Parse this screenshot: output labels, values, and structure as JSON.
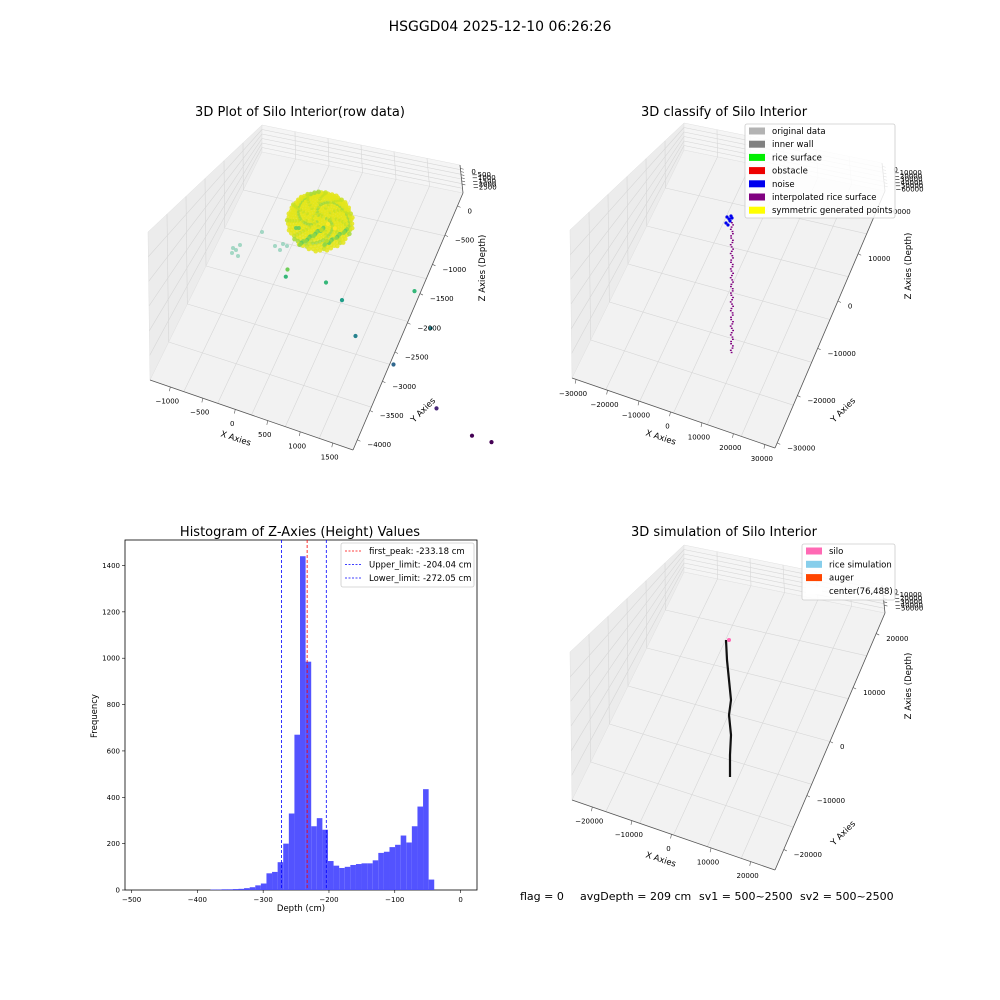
{
  "suptitle": "HSGGD04 2025-12-10 06:26:26",
  "footer": {
    "flag": "flag = 0",
    "avg": "avgDepth = 209 cm",
    "sv1": "sv1 = 500~2500",
    "sv2": "sv2 = 500~2500"
  },
  "chart_data": [
    {
      "type": "scatter",
      "title": "3D Plot of Silo Interior(row data)",
      "xlabel": "X Axies",
      "ylabel": "Y Axies",
      "zlabel": "Z Axies (Depth)",
      "x_ticks": [
        "−1000",
        "−500",
        "0",
        "500",
        "1000",
        "1500"
      ],
      "y_ticks": [
        "0",
        "−500",
        "−1000",
        "−1500",
        "−2000",
        "−2500",
        "−3000",
        "−3500",
        "−4000"
      ],
      "z_ticks": [
        "0",
        "−500",
        "−1000",
        "−1500",
        "−2000",
        "−2500"
      ],
      "colormap": "viridis",
      "points": [
        {
          "x": 300,
          "y": -900,
          "z": -80
        },
        {
          "x": 350,
          "y": -1000,
          "z": -120
        },
        {
          "x": 250,
          "y": -800,
          "z": -200
        },
        {
          "x": 200,
          "y": -1200,
          "z": -300
        },
        {
          "x": -500,
          "y": -2000,
          "z": -700
        },
        {
          "x": -550,
          "y": -2100,
          "z": -800
        },
        {
          "x": 100,
          "y": -1500,
          "z": -900
        },
        {
          "x": 1200,
          "y": -1300,
          "z": -900
        },
        {
          "x": 200,
          "y": -1800,
          "z": -1100
        },
        {
          "x": 1300,
          "y": -1600,
          "z": -1400
        },
        {
          "x": 300,
          "y": -2000,
          "z": -1600
        },
        {
          "x": 600,
          "y": -2500,
          "z": -1900
        },
        {
          "x": 900,
          "y": -3200,
          "z": -2400
        },
        {
          "x": 1200,
          "y": -3600,
          "z": -2700
        },
        {
          "x": 1400,
          "y": -3700,
          "z": -2750
        }
      ]
    },
    {
      "type": "scatter",
      "title": "3D classify of Silo Interior",
      "xlabel": "X Axies",
      "ylabel": "Y Axies",
      "zlabel": "Z Axies (Depth)",
      "x_ticks": [
        "−30000",
        "−20000",
        "−10000",
        "0",
        "10000",
        "20000",
        "30000"
      ],
      "y_ticks": [
        "20000",
        "10000",
        "0",
        "−10000",
        "−20000",
        "−30000"
      ],
      "z_ticks": [
        "0",
        "−10000",
        "−20000",
        "−30000",
        "−40000",
        "−50000",
        "−60000"
      ],
      "legend": [
        {
          "label": "original data",
          "color": "#b3b3b3"
        },
        {
          "label": "inner wall",
          "color": "#808080"
        },
        {
          "label": "rice surface",
          "color": "#00ee00"
        },
        {
          "label": "obstacle",
          "color": "#ee0000"
        },
        {
          "label": "noise",
          "color": "#0000ee"
        },
        {
          "label": "interpolated rice surface",
          "color": "#800080"
        },
        {
          "label": "symmetric generated points",
          "color": "#ffff00"
        }
      ]
    },
    {
      "type": "bar",
      "title": "Histogram of Z-Axies (Height) Values",
      "xlabel": "Depth (cm)",
      "ylabel": "Frequency",
      "xlim": [
        -510,
        25
      ],
      "ylim": [
        0,
        1510
      ],
      "x_ticks": [
        -500,
        -400,
        -300,
        -200,
        -100,
        0
      ],
      "y_ticks": [
        0,
        200,
        400,
        600,
        800,
        1000,
        1200,
        1400
      ],
      "bar_color": "#4a4aff",
      "bin_width": 8.5,
      "bins": [
        [
          -380,
          2
        ],
        [
          -371.5,
          2
        ],
        [
          -363,
          3
        ],
        [
          -354.5,
          3
        ],
        [
          -346,
          4
        ],
        [
          -337.5,
          5
        ],
        [
          -329,
          8
        ],
        [
          -320.5,
          12
        ],
        [
          -312,
          20
        ],
        [
          -303.5,
          28
        ],
        [
          -295,
          72
        ],
        [
          -286.5,
          78
        ],
        [
          -278,
          120
        ],
        [
          -269.5,
          200
        ],
        [
          -261,
          330
        ],
        [
          -252.5,
          670
        ],
        [
          -244,
          1440
        ],
        [
          -235.5,
          985
        ],
        [
          -227,
          275
        ],
        [
          -218.5,
          310
        ],
        [
          -210,
          260
        ],
        [
          -201.5,
          125
        ],
        [
          -193,
          105
        ],
        [
          -184.5,
          95
        ],
        [
          -176,
          100
        ],
        [
          -167.5,
          108
        ],
        [
          -159,
          112
        ],
        [
          -150.5,
          115
        ],
        [
          -142,
          115
        ],
        [
          -133.5,
          128
        ],
        [
          -125,
          160
        ],
        [
          -116.5,
          165
        ],
        [
          -108,
          185
        ],
        [
          -99.5,
          195
        ],
        [
          -91,
          235
        ],
        [
          -82.5,
          205
        ],
        [
          -74,
          275
        ],
        [
          -65.5,
          360
        ],
        [
          -57,
          435
        ],
        [
          -48.5,
          45
        ]
      ],
      "vlines": [
        {
          "x": -233.18,
          "color": "#ff0000",
          "label": "first_peak: -233.18 cm"
        },
        {
          "x": -204.04,
          "color": "#0000ff",
          "label": "Upper_limit: -204.04 cm"
        },
        {
          "x": -272.05,
          "color": "#0000ff",
          "label": "Lower_limit: -272.05 cm"
        }
      ]
    },
    {
      "type": "scatter",
      "title": "3D simulation of Silo Interior",
      "xlabel": "X Axies",
      "ylabel": "Y Axies",
      "zlabel": "Z Axies (Depth)",
      "x_ticks": [
        "−20000",
        "−10000",
        "0",
        "10000",
        "20000"
      ],
      "y_ticks": [
        "20000",
        "10000",
        "0",
        "−10000",
        "−20000"
      ],
      "z_ticks": [
        "0",
        "−10000",
        "−20000",
        "−30000",
        "−40000",
        "−50000"
      ],
      "legend": [
        {
          "label": "silo",
          "color": "#ff69b4"
        },
        {
          "label": "rice simulation",
          "color": "#87ceeb"
        },
        {
          "label": "auger",
          "color": "#ff4500"
        },
        {
          "label": "center(76,488)",
          "color": "#ffffff"
        }
      ]
    }
  ]
}
